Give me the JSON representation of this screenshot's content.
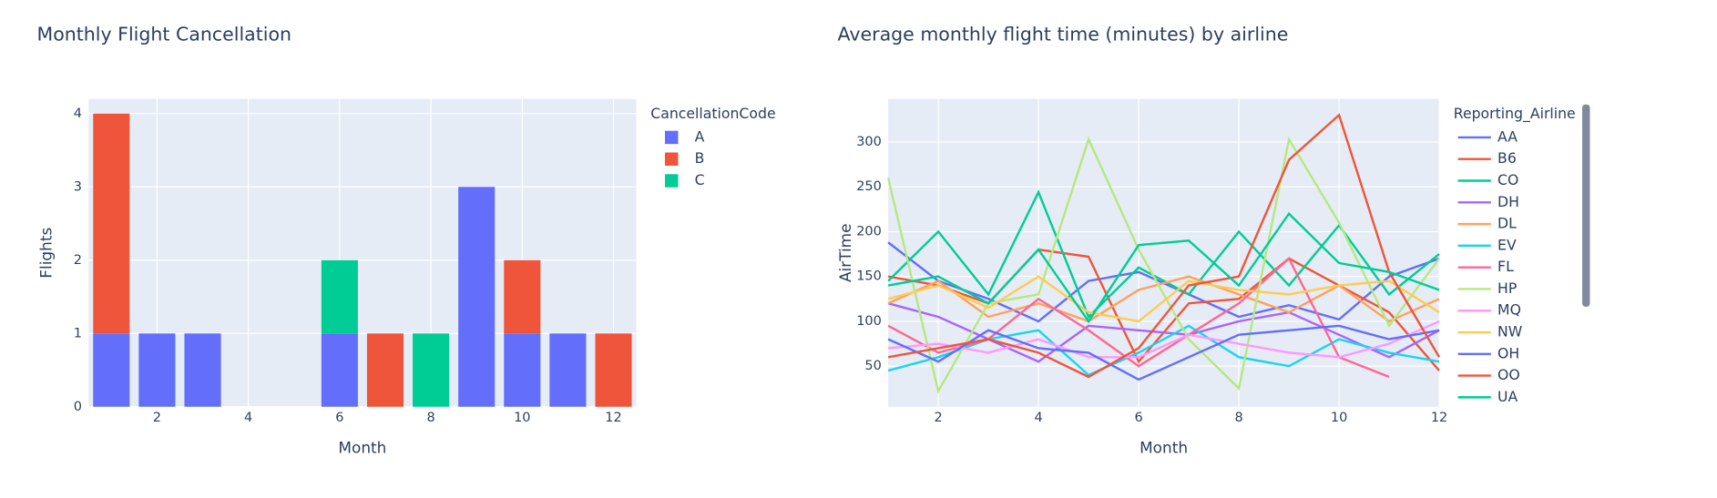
{
  "chart_data": [
    {
      "type": "bar",
      "barmode": "stack",
      "title": "Monthly Flight Cancellation",
      "x_label": "Month",
      "y_label": "Flights",
      "legend_title": "CancellationCode",
      "x": [
        1,
        2,
        3,
        4,
        5,
        6,
        7,
        8,
        9,
        10,
        11,
        12
      ],
      "series": [
        {
          "name": "A",
          "color": "#636efa",
          "values": [
            1,
            1,
            1,
            0,
            0,
            1,
            0,
            0,
            3,
            1,
            1,
            0
          ]
        },
        {
          "name": "B",
          "color": "#EF553B",
          "values": [
            3,
            0,
            0,
            0,
            0,
            0,
            1,
            0,
            0,
            1,
            0,
            1
          ]
        },
        {
          "name": "C",
          "color": "#00cc96",
          "values": [
            0,
            0,
            0,
            0,
            0,
            1,
            0,
            1,
            0,
            0,
            0,
            0
          ]
        }
      ],
      "xlim": [
        0.5,
        12.5
      ],
      "xticks": [
        2,
        4,
        6,
        8,
        10,
        12
      ],
      "ylim": [
        0,
        4.2
      ],
      "yticks": [
        0,
        1,
        2,
        3,
        4
      ],
      "grid": true
    },
    {
      "type": "line",
      "title": "Average monthly flight time (minutes) by airline",
      "x_label": "Month",
      "y_label": "AirTime",
      "legend_title": "Reporting_Airline",
      "x": [
        1,
        2,
        3,
        4,
        5,
        6,
        7,
        8,
        9,
        10,
        11,
        12
      ],
      "series": [
        {
          "name": "AA",
          "color": "#636efa",
          "values": [
            188,
            145,
            125,
            100,
            145,
            155,
            130,
            105,
            118,
            102,
            150,
            170
          ]
        },
        {
          "name": "B6",
          "color": "#EF553B",
          "values": [
            150,
            140,
            120,
            180,
            172,
            55,
            120,
            125,
            170,
            140,
            110,
            45
          ]
        },
        {
          "name": "CO",
          "color": "#00cc96",
          "values": [
            145,
            200,
            130,
            244,
            105,
            160,
            130,
            200,
            140,
            207,
            130,
            175
          ]
        },
        {
          "name": "DH",
          "color": "#ab63fa",
          "values": [
            120,
            105,
            80,
            55,
            95,
            90,
            85,
            100,
            110,
            85,
            60,
            90
          ]
        },
        {
          "name": "DL",
          "color": "#FFA15A",
          "values": [
            120,
            145,
            105,
            120,
            100,
            135,
            150,
            130,
            110,
            140,
            100,
            125
          ]
        },
        {
          "name": "EV",
          "color": "#19d3f3",
          "values": [
            45,
            60,
            80,
            90,
            40,
            65,
            95,
            60,
            50,
            80,
            65,
            55
          ]
        },
        {
          "name": "FL",
          "color": "#FF6692",
          "values": [
            95,
            65,
            80,
            125,
            90,
            50,
            85,
            120,
            170,
            60,
            38,
            null
          ]
        },
        {
          "name": "HP",
          "color": "#B6E880",
          "values": [
            260,
            22,
            120,
            130,
            303,
            180,
            80,
            25,
            303,
            210,
            95,
            170
          ]
        },
        {
          "name": "MQ",
          "color": "#FF97FF",
          "values": [
            70,
            75,
            65,
            80,
            60,
            60,
            85,
            75,
            65,
            60,
            75,
            100
          ]
        },
        {
          "name": "NW",
          "color": "#FECB52",
          "values": [
            125,
            140,
            115,
            150,
            110,
            100,
            145,
            135,
            130,
            140,
            145,
            110
          ]
        },
        {
          "name": "OH",
          "color": "#636efa",
          "values": [
            80,
            55,
            90,
            70,
            65,
            35,
            60,
            85,
            90,
            95,
            80,
            90
          ]
        },
        {
          "name": "OO",
          "color": "#EF553B",
          "values": [
            60,
            70,
            80,
            65,
            38,
            70,
            140,
            150,
            280,
            330,
            155,
            60
          ]
        },
        {
          "name": "UA",
          "color": "#00cc96",
          "values": [
            140,
            150,
            120,
            180,
            100,
            185,
            190,
            140,
            220,
            165,
            155,
            135
          ]
        }
      ],
      "xlim": [
        1,
        12
      ],
      "xticks": [
        2,
        4,
        6,
        8,
        10,
        12
      ],
      "ylim": [
        4.7,
        348
      ],
      "yticks": [
        50,
        100,
        150,
        200,
        250,
        300
      ],
      "grid": true
    }
  ]
}
